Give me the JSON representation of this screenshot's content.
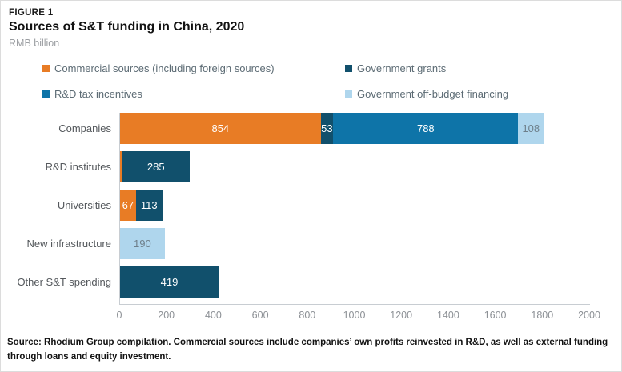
{
  "figure": {
    "eyebrow": "FIGURE 1",
    "title": "Sources of S&T funding in China, 2020",
    "subtitle": "RMB billion"
  },
  "colors": {
    "commercial": "#E87C25",
    "grants": "#11506C",
    "tax_incentives": "#0E74A8",
    "off_budget": "#AFD6ED",
    "axis_line": "#C8CDD2",
    "label_on_light": "#6E7F8A",
    "label_on_dark": "#FFFFFF"
  },
  "legend": [
    {
      "label": "Commercial sources (including foreign sources)",
      "color_key": "commercial"
    },
    {
      "label": "Government grants",
      "color_key": "grants"
    },
    {
      "label": "R&D tax incentives",
      "color_key": "tax_incentives"
    },
    {
      "label": "Government off-budget financing",
      "color_key": "off_budget"
    }
  ],
  "chart_data": {
    "type": "bar",
    "orientation": "horizontal-stacked",
    "title": "Sources of S&T funding in China, 2020",
    "unit": "RMB billion",
    "categories": [
      "Companies",
      "R&D institutes",
      "Universities",
      "New infrastructure",
      "Other S&T spending"
    ],
    "series": [
      {
        "name": "Commercial sources (including foreign sources)",
        "color_key": "commercial",
        "values": [
          854,
          10,
          67,
          0,
          0
        ]
      },
      {
        "name": "Government grants",
        "color_key": "grants",
        "values": [
          53,
          285,
          113,
          0,
          419
        ]
      },
      {
        "name": "R&D tax incentives",
        "color_key": "tax_incentives",
        "values": [
          788,
          0,
          0,
          0,
          0
        ]
      },
      {
        "name": "Government off-budget financing",
        "color_key": "off_budget",
        "values": [
          108,
          0,
          0,
          190,
          0
        ]
      }
    ],
    "xlim": [
      0,
      2000
    ],
    "xticks": [
      0,
      200,
      400,
      600,
      800,
      1000,
      1200,
      1400,
      1600,
      1800,
      2000
    ],
    "bar_label_min_value": 40,
    "grid": false,
    "legend_position": "top"
  },
  "source": "Source: Rhodium Group compilation. Commercial sources include companies’ own profits reinvested in R&D, as well as external funding through loans and equity investment."
}
